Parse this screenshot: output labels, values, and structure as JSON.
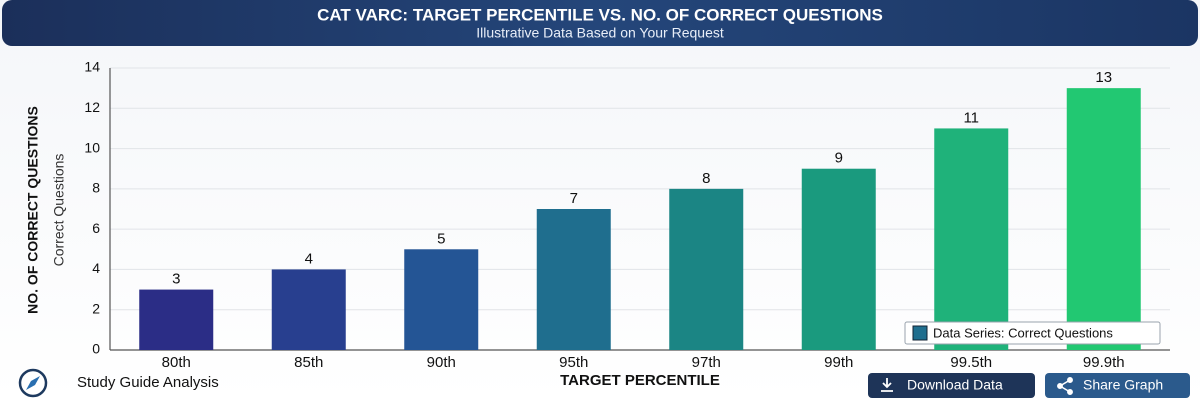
{
  "chart_data": {
    "type": "bar",
    "title": "CAT VARC: TARGET PERCENTILE VS. NO. OF CORRECT QUESTIONS",
    "subtitle": "Illustrative Data Based on Your Request",
    "xlabel": "TARGET PERCENTILE",
    "ylabel": "NO. OF CORRECT QUESTIONS",
    "ylabel_sub": "Correct Questions",
    "categories": [
      "80th",
      "85th",
      "90th",
      "95th",
      "97th",
      "99th",
      "99.5th",
      "99.9th"
    ],
    "series": [
      {
        "name": "Data Series: Correct Questions",
        "colors": [
          "#2b2d86",
          "#283f8f",
          "#245595",
          "#1f6e8e",
          "#1b8584",
          "#1a9a7e",
          "#1fb27a",
          "#22c872"
        ],
        "values": [
          3,
          4,
          5,
          7,
          8,
          9,
          11,
          13
        ]
      }
    ],
    "ylim": [
      0,
      14
    ],
    "yticks": [
      0,
      2,
      4,
      6,
      8,
      10,
      12,
      14
    ],
    "grid": true,
    "legend": "lower right"
  },
  "footer": {
    "brand": "Study Guide Analysis",
    "buttons": [
      "Download Data",
      "Share Graph"
    ]
  }
}
